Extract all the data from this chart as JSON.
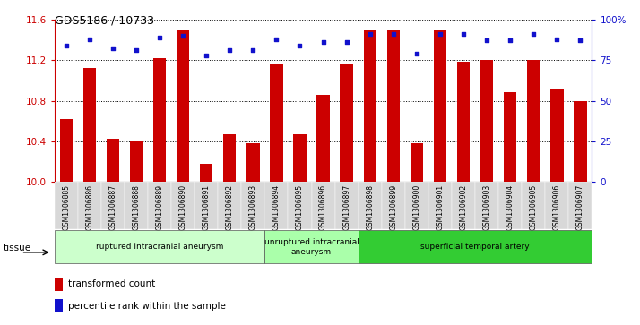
{
  "title": "GDS5186 / 10733",
  "samples": [
    "GSM1306885",
    "GSM1306886",
    "GSM1306887",
    "GSM1306888",
    "GSM1306889",
    "GSM1306890",
    "GSM1306891",
    "GSM1306892",
    "GSM1306893",
    "GSM1306894",
    "GSM1306895",
    "GSM1306896",
    "GSM1306897",
    "GSM1306898",
    "GSM1306899",
    "GSM1306900",
    "GSM1306901",
    "GSM1306902",
    "GSM1306903",
    "GSM1306904",
    "GSM1306905",
    "GSM1306906",
    "GSM1306907"
  ],
  "bar_values": [
    10.62,
    11.12,
    10.43,
    10.4,
    11.22,
    11.5,
    10.18,
    10.47,
    10.38,
    11.17,
    10.47,
    10.86,
    11.17,
    11.5,
    11.5,
    10.38,
    11.5,
    11.18,
    11.2,
    10.88,
    11.2,
    10.92,
    10.8
  ],
  "percentile_values": [
    84,
    88,
    82,
    81,
    89,
    90,
    78,
    81,
    81,
    88,
    84,
    86,
    86,
    91,
    91,
    79,
    91,
    91,
    87,
    87,
    91,
    88,
    87
  ],
  "ylim_left": [
    10.0,
    11.6
  ],
  "ylim_right": [
    0,
    100
  ],
  "yticks_left": [
    10.0,
    10.4,
    10.8,
    11.2,
    11.6
  ],
  "yticks_right": [
    0,
    25,
    50,
    75,
    100
  ],
  "ytick_labels_right": [
    "0",
    "25",
    "50",
    "75",
    "100%"
  ],
  "bar_color": "#cc0000",
  "dot_color": "#1111cc",
  "groups": [
    {
      "label": "ruptured intracranial aneurysm",
      "start": 0,
      "end": 9,
      "color": "#ccffcc"
    },
    {
      "label": "unruptured intracranial\naneurysm",
      "start": 9,
      "end": 13,
      "color": "#aaffaa"
    },
    {
      "label": "superficial temporal artery",
      "start": 13,
      "end": 23,
      "color": "#33cc33"
    }
  ],
  "tissue_label": "tissue",
  "legend_bar_label": "transformed count",
  "legend_dot_label": "percentile rank within the sample",
  "background_groups": [
    "#ccffcc",
    "#aaffaa",
    "#33cc33"
  ]
}
